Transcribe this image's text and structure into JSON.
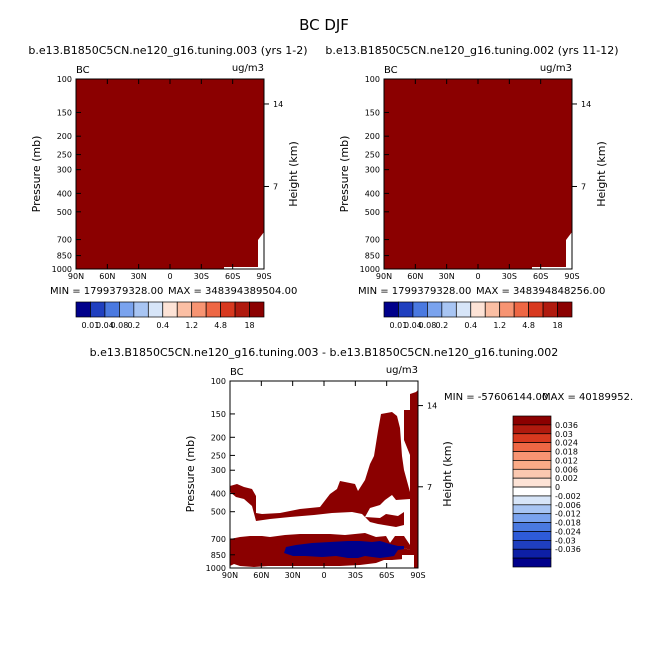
{
  "figure_title": "BC DJF",
  "colors": {
    "dark_red": "#8b0000",
    "dark_blue": "#00008b",
    "white": "#ffffff",
    "axis": "#000000"
  },
  "chart_data": [
    {
      "type": "heatmap",
      "title": "b.e13.B1850C5CN.ne120_g16.tuning.003 (yrs 1-2)",
      "left_label": "BC",
      "right_label": "ug/m3",
      "ylabel": "Pressure (mb)",
      "ylabel_right": "Height (km)",
      "x_ticks": [
        "90N",
        "60N",
        "30N",
        "0",
        "30S",
        "60S",
        "90S"
      ],
      "y_ticks": [
        "100",
        "150",
        "200",
        "250",
        "300",
        "400",
        "500",
        "700",
        "850",
        "1000"
      ],
      "y_ticks_right": [
        "14",
        "7"
      ],
      "ylim": [
        100,
        1000
      ],
      "min_text": "MIN = 1799379328.00",
      "max_text": "MAX = 348394389504.00",
      "colorbar_labels": [
        "0.01",
        "0.04",
        "0.08",
        "0.2",
        "0.4",
        "1.2",
        "4.8",
        "18"
      ],
      "colorbar_colors": [
        "#00008b",
        "#1f3fbf",
        "#4a79e0",
        "#7aa3ee",
        "#a8c5f3",
        "#d7e5f8",
        "#fde3d6",
        "#fbbfa4",
        "#f79472",
        "#ee6744",
        "#d8391f",
        "#b01a0e",
        "#8b0000"
      ]
    },
    {
      "type": "heatmap",
      "title": "b.e13.B1850C5CN.ne120_g16.tuning.002 (yrs 11-12)",
      "left_label": "BC",
      "right_label": "ug/m3",
      "ylabel": "Pressure (mb)",
      "ylabel_right": "Height (km)",
      "x_ticks": [
        "90N",
        "60N",
        "30N",
        "0",
        "30S",
        "60S",
        "90S"
      ],
      "y_ticks": [
        "100",
        "150",
        "200",
        "250",
        "300",
        "400",
        "500",
        "700",
        "850",
        "1000"
      ],
      "y_ticks_right": [
        "14",
        "7"
      ],
      "ylim": [
        100,
        1000
      ],
      "min_text": "MIN = 1799379328.00",
      "max_text": "MAX = 348394848256.00",
      "colorbar_labels": [
        "0.01",
        "0.04",
        "0.08",
        "0.2",
        "0.4",
        "1.2",
        "4.8",
        "18"
      ],
      "colorbar_colors": [
        "#00008b",
        "#1f3fbf",
        "#4a79e0",
        "#7aa3ee",
        "#a8c5f3",
        "#d7e5f8",
        "#fde3d6",
        "#fbbfa4",
        "#f79472",
        "#ee6744",
        "#d8391f",
        "#b01a0e",
        "#8b0000"
      ]
    },
    {
      "type": "heatmap",
      "title": "b.e13.B1850C5CN.ne120_g16.tuning.003 - b.e13.B1850C5CN.ne120_g16.tuning.002",
      "left_label": "BC",
      "right_label": "ug/m3",
      "ylabel": "Pressure (mb)",
      "ylabel_right": "Height (km)",
      "x_ticks": [
        "90N",
        "60N",
        "30N",
        "0",
        "30S",
        "60S",
        "90S"
      ],
      "y_ticks": [
        "100",
        "150",
        "200",
        "250",
        "300",
        "400",
        "500",
        "700",
        "850",
        "1000"
      ],
      "y_ticks_right": [
        "14",
        "7"
      ],
      "ylim": [
        100,
        1000
      ],
      "min_text": "MIN = -57606144.00",
      "max_text": "MAX = 40189952.",
      "colorbar_labels": [
        "0.036",
        "0.03",
        "0.024",
        "0.018",
        "0.012",
        "0.006",
        "0.002",
        "0",
        "-0.002",
        "-0.006",
        "-0.012",
        "-0.018",
        "-0.024",
        "-0.03",
        "-0.036"
      ],
      "colorbar_colors": [
        "#8b0000",
        "#b01a0e",
        "#d8391f",
        "#ee6744",
        "#f79472",
        "#fbab87",
        "#fbc8b0",
        "#fde3d6",
        "#ffffff",
        "#d7e5f8",
        "#a8c5f3",
        "#7aa3ee",
        "#4a79e0",
        "#2e5bd8",
        "#1f3fbf",
        "#0d1fa5",
        "#00008b"
      ]
    }
  ]
}
